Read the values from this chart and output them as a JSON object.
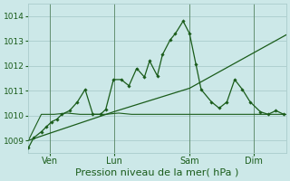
{
  "background_color": "#cce8e8",
  "grid_color": "#aacccc",
  "line_color": "#1a5c1a",
  "xlabel": "Pression niveau de la mer( hPa )",
  "ylim": [
    1008.5,
    1014.5
  ],
  "yticks": [
    1009,
    1010,
    1011,
    1012,
    1013,
    1014
  ],
  "day_labels": [
    "Ven",
    "Lun",
    "Sam",
    "Dim"
  ],
  "day_positions": [
    0.083,
    0.333,
    0.625,
    0.875
  ],
  "line1_x": [
    0.0,
    0.02,
    0.05,
    0.07,
    0.09,
    0.11,
    0.13,
    0.16,
    0.19,
    0.22,
    0.25,
    0.28,
    0.3,
    0.33,
    0.36,
    0.39,
    0.42,
    0.45,
    0.47,
    0.5,
    0.52,
    0.55,
    0.57,
    0.6,
    0.625,
    0.65,
    0.67,
    0.71,
    0.74,
    0.77,
    0.8,
    0.83,
    0.86,
    0.9,
    0.93,
    0.96,
    0.99
  ],
  "line1_y": [
    1008.7,
    1009.1,
    1009.35,
    1009.55,
    1009.75,
    1009.85,
    1010.05,
    1010.2,
    1010.55,
    1011.05,
    1010.05,
    1010.05,
    1010.25,
    1011.45,
    1011.45,
    1011.2,
    1011.9,
    1011.55,
    1012.2,
    1011.6,
    1012.45,
    1013.05,
    1013.3,
    1013.8,
    1013.3,
    1012.05,
    1011.05,
    1010.55,
    1010.3,
    1010.55,
    1011.45,
    1011.05,
    1010.55,
    1010.15,
    1010.05,
    1010.2,
    1010.05
  ],
  "line2_x": [
    0.0,
    0.33,
    0.625,
    1.0
  ],
  "line2_y": [
    1009.0,
    1010.15,
    1011.1,
    1013.25
  ],
  "line3_x": [
    0.0,
    0.05,
    0.1,
    0.15,
    0.2,
    0.25,
    0.3,
    0.35,
    0.4,
    0.45,
    0.5,
    0.55,
    0.6,
    0.65,
    0.7,
    0.75,
    0.8,
    0.85,
    0.9,
    0.95,
    1.0
  ],
  "line3_y": [
    1009.0,
    1010.05,
    1010.05,
    1010.1,
    1010.05,
    1010.05,
    1010.05,
    1010.1,
    1010.05,
    1010.05,
    1010.05,
    1010.05,
    1010.05,
    1010.05,
    1010.05,
    1010.05,
    1010.05,
    1010.05,
    1010.05,
    1010.05,
    1010.05
  ]
}
